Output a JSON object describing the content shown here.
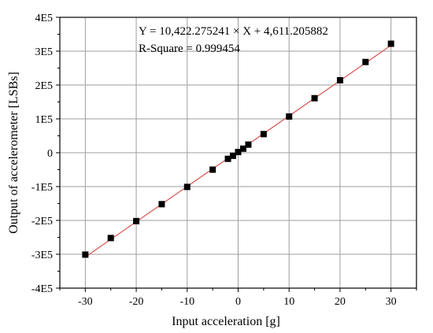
{
  "chart_data": {
    "type": "scatter",
    "xlabel": "Input acceleration [g]",
    "ylabel": "Output of accelerometer [LSBs]",
    "xlim": [
      -35,
      35
    ],
    "ylim": [
      -400000,
      400000
    ],
    "x_ticks": [
      -30,
      -20,
      -10,
      0,
      10,
      20,
      30
    ],
    "x_tick_labels": [
      "-30",
      "-20",
      "-10",
      "0",
      "10",
      "20",
      "30"
    ],
    "y_ticks": [
      -400000,
      -300000,
      -200000,
      -100000,
      0,
      100000,
      200000,
      300000,
      400000
    ],
    "y_tick_labels": [
      "-4E5",
      "-3E5",
      "-2E5",
      "-1E5",
      "0",
      "1E5",
      "2E5",
      "3E5",
      "4E5"
    ],
    "grid": true,
    "annotations": [
      "Y = 10,422.275241 × X + 4,611.205882",
      "R-Square = 0.999454"
    ],
    "fit": {
      "slope": 10422.275241,
      "intercept": 4611.205882,
      "color": "#d9534f"
    },
    "series": [
      {
        "marker_color": "#000000",
        "x": [
          -30,
          -25,
          -20,
          -15,
          -10,
          -5,
          -2,
          -1,
          0,
          1,
          2,
          5,
          10,
          15,
          20,
          25,
          30
        ],
        "y": [
          -301000,
          -252000,
          -202000,
          -152000,
          -101000,
          -50000,
          -18000,
          -9000,
          2000,
          12000,
          24000,
          55000,
          107000,
          161000,
          214000,
          268000,
          322000
        ]
      }
    ],
    "colors": {
      "grid": "#9e9e9e",
      "axis": "#000000",
      "fit_line": "#d9534f"
    }
  }
}
